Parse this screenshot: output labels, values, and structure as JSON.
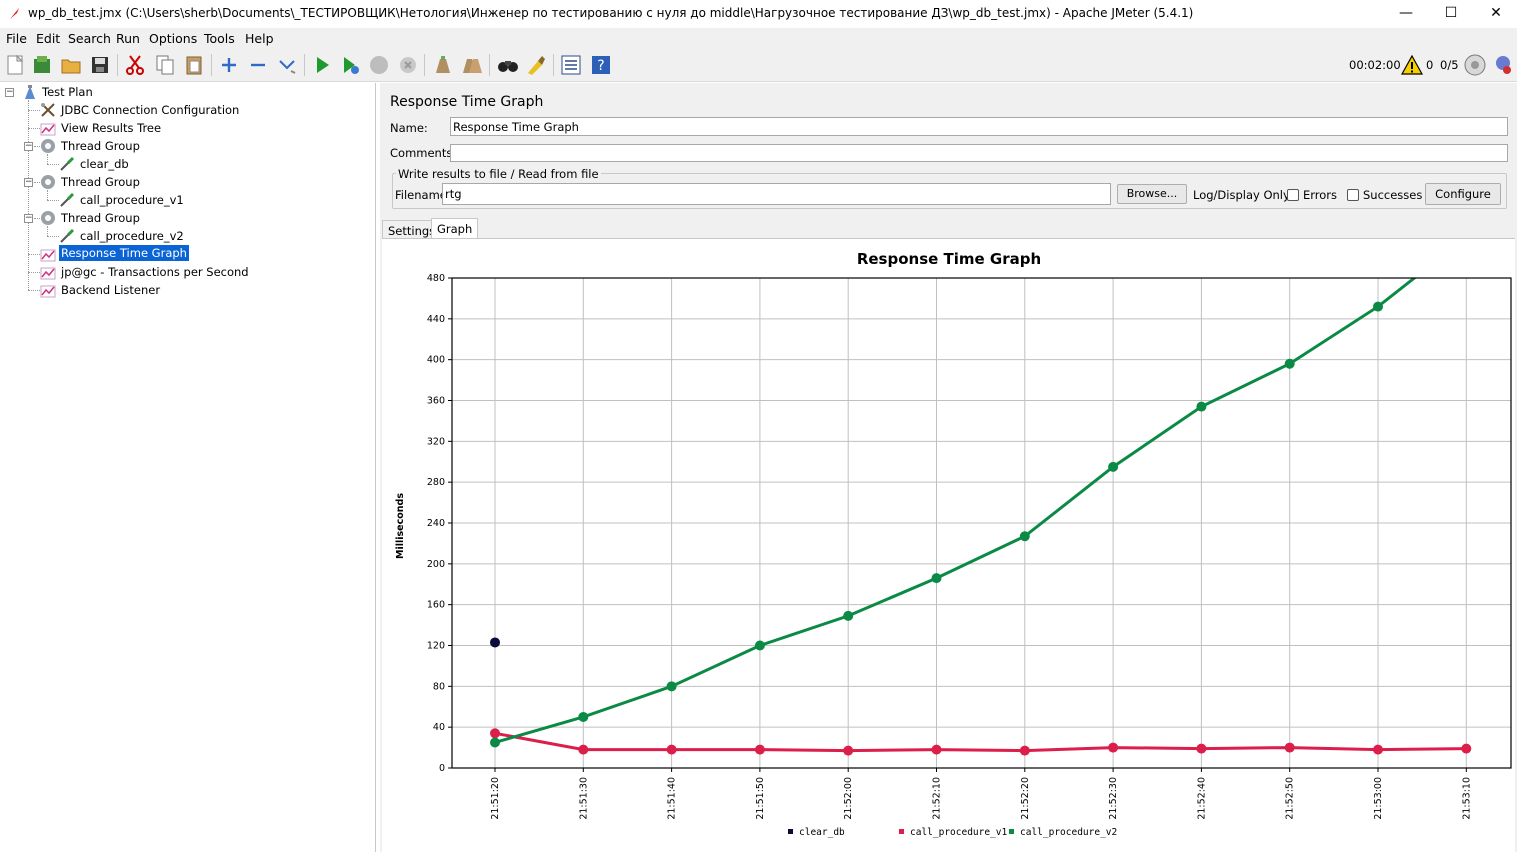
{
  "window": {
    "title": "wp_db_test.jmx (C:\\Users\\sherb\\Documents\\_ТЕСТИРОВЩИК\\Нетология\\Инженер по тестированию с нуля до middle\\Нагрузочное тестирование ДЗ\\wp_db_test.jmx) - Apache JMeter (5.4.1)",
    "minimize": "—",
    "maximize": "☐",
    "close": "✕"
  },
  "menu": [
    "File",
    "Edit",
    "Search",
    "Run",
    "Options",
    "Tools",
    "Help"
  ],
  "toolbar": {
    "timer": "00:02:00",
    "error_count": "0",
    "threads": "0/5"
  },
  "tree": [
    {
      "label": "Test Plan",
      "icon": "test-plan-icon"
    },
    {
      "label": "JDBC Connection Configuration",
      "icon": "config-icon"
    },
    {
      "label": "View Results Tree",
      "icon": "listener-icon"
    },
    {
      "label": "Thread Group",
      "icon": "thread-group-icon"
    },
    {
      "label": "clear_db",
      "icon": "sampler-icon"
    },
    {
      "label": "Thread Group",
      "icon": "thread-group-icon"
    },
    {
      "label": "call_procedure_v1",
      "icon": "sampler-icon"
    },
    {
      "label": "Thread Group",
      "icon": "thread-group-icon"
    },
    {
      "label": "call_procedure_v2",
      "icon": "sampler-icon"
    },
    {
      "label": "Response Time Graph",
      "icon": "listener-icon"
    },
    {
      "label": "jp@gc - Transactions per Second",
      "icon": "listener-icon"
    },
    {
      "label": "Backend Listener",
      "icon": "listener-icon"
    }
  ],
  "panel": {
    "title": "Response Time Graph",
    "name_label": "Name:",
    "name_value": "Response Time Graph",
    "comments_label": "Comments:",
    "comments_value": "",
    "group_title": "Write results to file / Read from file",
    "filename_label": "Filename",
    "filename_value": "rtg",
    "browse_label": "Browse...",
    "log_display_label": "Log/Display Only:",
    "errors_label": "Errors",
    "successes_label": "Successes",
    "configure_label": "Configure",
    "tabs": [
      "Settings",
      "Graph"
    ],
    "active_tab": "Graph"
  },
  "chart_data": {
    "type": "line",
    "title": "Response Time Graph",
    "ylabel": "Milliseconds",
    "xlabel": "",
    "ylim": [
      0,
      480
    ],
    "yticks": [
      0,
      40,
      80,
      120,
      160,
      200,
      240,
      280,
      320,
      360,
      400,
      440,
      480
    ],
    "x": [
      "21:51:20",
      "21:51:30",
      "21:51:40",
      "21:51:50",
      "21:52:00",
      "21:52:10",
      "21:52:20",
      "21:52:30",
      "21:52:40",
      "21:52:50",
      "21:53:00",
      "21:53:10"
    ],
    "grid": true,
    "legend_position": "bottom",
    "series": [
      {
        "name": "clear_db",
        "color": "#0b0b3b",
        "values": [
          123,
          null,
          null,
          null,
          null,
          null,
          null,
          null,
          null,
          null,
          null,
          null
        ]
      },
      {
        "name": "call_procedure_v1",
        "color": "#dc1e4a",
        "values": [
          34,
          18,
          18,
          18,
          17,
          18,
          17,
          20,
          19,
          20,
          18,
          19
        ]
      },
      {
        "name": "call_procedure_v2",
        "color": "#0a8a44",
        "values": [
          25,
          50,
          80,
          120,
          149,
          186,
          227,
          295,
          354,
          396,
          452,
          520
        ]
      }
    ]
  }
}
